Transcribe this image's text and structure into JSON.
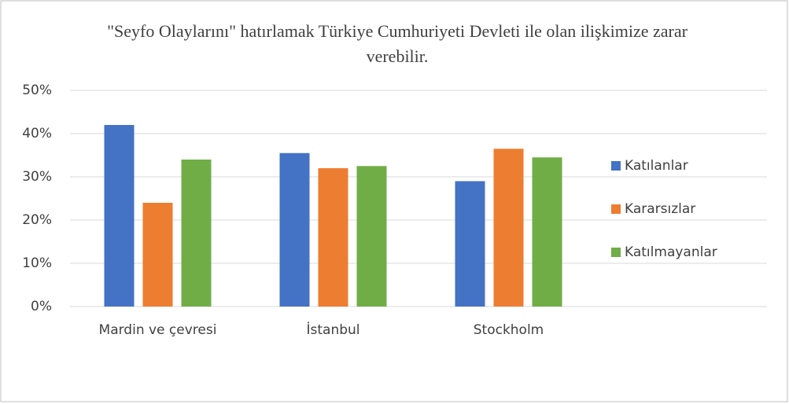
{
  "chart_data": {
    "type": "bar",
    "title": "\"Seyfo Olaylarını\" hatırlamak Türkiye Cumhuriyeti Devleti ile olan ilişkimize zarar verebilir.",
    "categories": [
      "Mardin ve çevresi",
      "İstanbul",
      "Stockholm"
    ],
    "series": [
      {
        "name": "Katılanlar",
        "color": "#4472c4",
        "values": [
          42,
          35.5,
          29
        ]
      },
      {
        "name": "Kararsızlar",
        "color": "#ed7d31",
        "values": [
          24,
          32,
          36.5
        ]
      },
      {
        "name": "Katılmayanlar",
        "color": "#70ad47",
        "values": [
          34,
          32.5,
          34.5
        ]
      }
    ],
    "ylim": [
      0,
      50
    ],
    "yticks": [
      {
        "value": 0,
        "label": "0%"
      },
      {
        "value": 10,
        "label": "10%"
      },
      {
        "value": 20,
        "label": "20%"
      },
      {
        "value": 30,
        "label": "30%"
      },
      {
        "value": 40,
        "label": "40%"
      },
      {
        "value": 50,
        "label": "50%"
      }
    ],
    "grid": true,
    "legend": "right"
  }
}
